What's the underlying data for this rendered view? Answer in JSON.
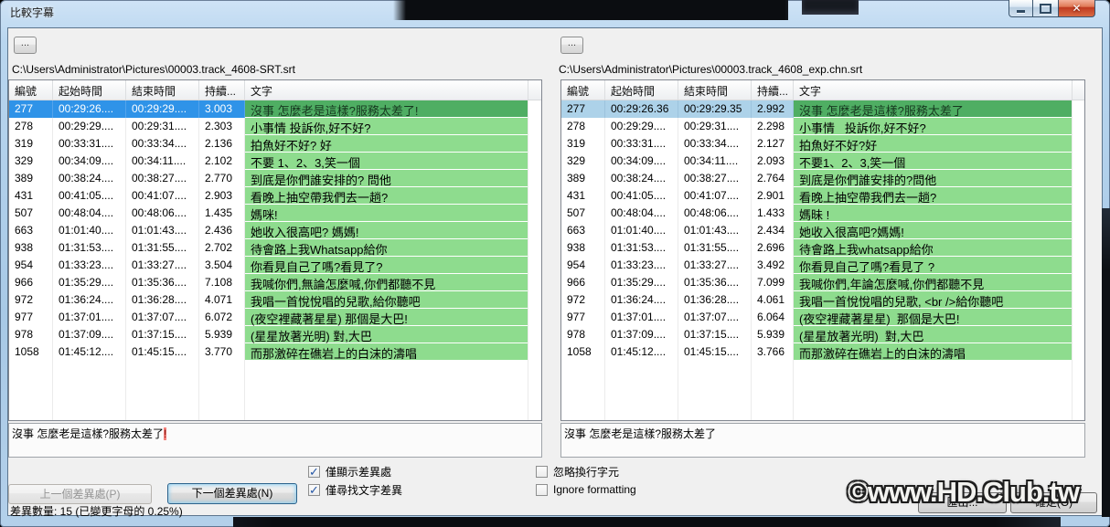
{
  "window": {
    "title": "比較字幕"
  },
  "watermark": "©www.HD.Club.tw",
  "colors": {
    "row_green": "#8edc8e",
    "selected_green": "#4fae63",
    "selected_blue": "#2f93e8",
    "selected_blue_pale": "#add2e9",
    "diff_highlight_bg": "#f4817b",
    "frame_blue": "#b7d5ef",
    "close_red": "#c73e24"
  },
  "panels": [
    {
      "side": "left",
      "browse_label": "...",
      "path": "C:\\Users\\Administrator\\Pictures\\00003.track_4608-SRT.srt",
      "columns": [
        "編號",
        "起始時間",
        "結束時間",
        "持續...",
        "文字"
      ],
      "rows": [
        {
          "id": "277",
          "start": "00:29:26....",
          "end": "00:29:29....",
          "dur": "3.003",
          "text": "沒事 怎麼老是這樣?服務太差了!",
          "selected": true
        },
        {
          "id": "278",
          "start": "00:29:29....",
          "end": "00:29:31....",
          "dur": "2.303",
          "text": "小事情 投訴你,好不好?",
          "selected": false
        },
        {
          "id": "319",
          "start": "00:33:31....",
          "end": "00:33:34....",
          "dur": "2.136",
          "text": "拍魚好不好? 好",
          "selected": false
        },
        {
          "id": "329",
          "start": "00:34:09....",
          "end": "00:34:11....",
          "dur": "2.102",
          "text": "不要 1、2、3,笑一個",
          "selected": false
        },
        {
          "id": "389",
          "start": "00:38:24....",
          "end": "00:38:27....",
          "dur": "2.770",
          "text": "到底是你們誰安排的? 問他",
          "selected": false
        },
        {
          "id": "431",
          "start": "00:41:05....",
          "end": "00:41:07....",
          "dur": "2.903",
          "text": "看晚上抽空帶我們去一趟?",
          "selected": false
        },
        {
          "id": "507",
          "start": "00:48:04....",
          "end": "00:48:06....",
          "dur": "1.435",
          "text": "媽咪!",
          "selected": false
        },
        {
          "id": "663",
          "start": "01:01:40....",
          "end": "01:01:43....",
          "dur": "2.436",
          "text": "她收入很高吧? 媽媽!",
          "selected": false
        },
        {
          "id": "938",
          "start": "01:31:53....",
          "end": "01:31:55....",
          "dur": "2.702",
          "text": "待會路上我Whatsapp給你",
          "selected": false
        },
        {
          "id": "954",
          "start": "01:33:23....",
          "end": "01:33:27....",
          "dur": "3.504",
          "text": "你看見自己了嗎?看見了?",
          "selected": false
        },
        {
          "id": "966",
          "start": "01:35:29....",
          "end": "01:35:36....",
          "dur": "7.108",
          "text": "我喊你們,無論怎麼喊,你們都聽不見",
          "selected": false
        },
        {
          "id": "972",
          "start": "01:36:24....",
          "end": "01:36:28....",
          "dur": "4.071",
          "text": "我唱一首悅悅唱的兒歌,給你聽吧",
          "selected": false
        },
        {
          "id": "977",
          "start": "01:37:01....",
          "end": "01:37:07....",
          "dur": "6.072",
          "text": "(夜空裡藏著星星) 那個是大巴!",
          "selected": false
        },
        {
          "id": "978",
          "start": "01:37:09....",
          "end": "01:37:15....",
          "dur": "5.939",
          "text": "(星星放著光明) 對,大巴",
          "selected": false
        },
        {
          "id": "1058",
          "start": "01:45:12....",
          "end": "01:45:15....",
          "dur": "3.770",
          "text": "而那激碎在礁岩上的白沫的濤唱",
          "selected": false
        }
      ],
      "preview": {
        "text": "沒事 怎麼老是這樣?服務太差了",
        "highlight": "!"
      }
    },
    {
      "side": "right",
      "browse_label": "...",
      "path": "C:\\Users\\Administrator\\Pictures\\00003.track_4608_exp.chn.srt",
      "columns": [
        "編號",
        "起始時間",
        "結束時間",
        "持續...",
        "文字"
      ],
      "rows": [
        {
          "id": "277",
          "start": "00:29:26.36",
          "end": "00:29:29.35",
          "dur": "2.992",
          "text": "沒事 怎麼老是這樣?服務太差了",
          "selected": true
        },
        {
          "id": "278",
          "start": "00:29:29....",
          "end": "00:29:31....",
          "dur": "2.298",
          "text": "小事情   投訴你,好不好?",
          "selected": false
        },
        {
          "id": "319",
          "start": "00:33:31....",
          "end": "00:33:34....",
          "dur": "2.127",
          "text": "拍魚好不好?好",
          "selected": false
        },
        {
          "id": "329",
          "start": "00:34:09....",
          "end": "00:34:11....",
          "dur": "2.093",
          "text": "不要1、2、3,笑一個",
          "selected": false
        },
        {
          "id": "389",
          "start": "00:38:24....",
          "end": "00:38:27....",
          "dur": "2.764",
          "text": "到底是你們誰安排的?問他",
          "selected": false
        },
        {
          "id": "431",
          "start": "00:41:05....",
          "end": "00:41:07....",
          "dur": "2.901",
          "text": "看晚上抽空帶我們去一趟?",
          "selected": false
        },
        {
          "id": "507",
          "start": "00:48:04....",
          "end": "00:48:06....",
          "dur": "1.433",
          "text": "媽昧 !",
          "selected": false
        },
        {
          "id": "663",
          "start": "01:01:40....",
          "end": "01:01:43....",
          "dur": "2.434",
          "text": "她收入很高吧?媽媽!",
          "selected": false
        },
        {
          "id": "938",
          "start": "01:31:53....",
          "end": "01:31:55....",
          "dur": "2.696",
          "text": "待會路上我whatsapp給你",
          "selected": false
        },
        {
          "id": "954",
          "start": "01:33:23....",
          "end": "01:33:27....",
          "dur": "3.492",
          "text": "你看見自己了嗎?看見了 ?",
          "selected": false
        },
        {
          "id": "966",
          "start": "01:35:29....",
          "end": "01:35:36....",
          "dur": "7.099",
          "text": "我喊你們,年論怎麼喊,你們都聽不見",
          "selected": false
        },
        {
          "id": "972",
          "start": "01:36:24....",
          "end": "01:36:28....",
          "dur": "4.061",
          "text": "我唱一首悅悅唱的兒歌, <br />給你聽吧",
          "selected": false
        },
        {
          "id": "977",
          "start": "01:37:01....",
          "end": "01:37:07....",
          "dur": "6.064",
          "text": "(夜空裡藏著星星)  那個是大巴!",
          "selected": false
        },
        {
          "id": "978",
          "start": "01:37:09....",
          "end": "01:37:15....",
          "dur": "5.939",
          "text": "(星星放著光明)  對,大巴",
          "selected": false
        },
        {
          "id": "1058",
          "start": "01:45:12....",
          "end": "01:45:15....",
          "dur": "3.766",
          "text": "而那激碎在礁岩上的白沫的濤唱",
          "selected": false
        }
      ],
      "preview": {
        "text": "沒事 怎麼老是這樣?服務太差了",
        "highlight": ""
      }
    }
  ],
  "controls": {
    "prev_button": "上一個差異處(P)",
    "next_button": "下一個差異處(N)",
    "checkboxes": [
      {
        "label": "僅顯示差異處",
        "checked": true
      },
      {
        "label": "僅尋找文字差異",
        "checked": true
      },
      {
        "label": "忽略換行字元",
        "checked": false
      },
      {
        "label": "Ignore formatting",
        "checked": false
      }
    ],
    "status": "差異數量: 15 (已變更字母的 0.25%)",
    "export_button": "匯出...",
    "ok_button": "確定(O)"
  }
}
